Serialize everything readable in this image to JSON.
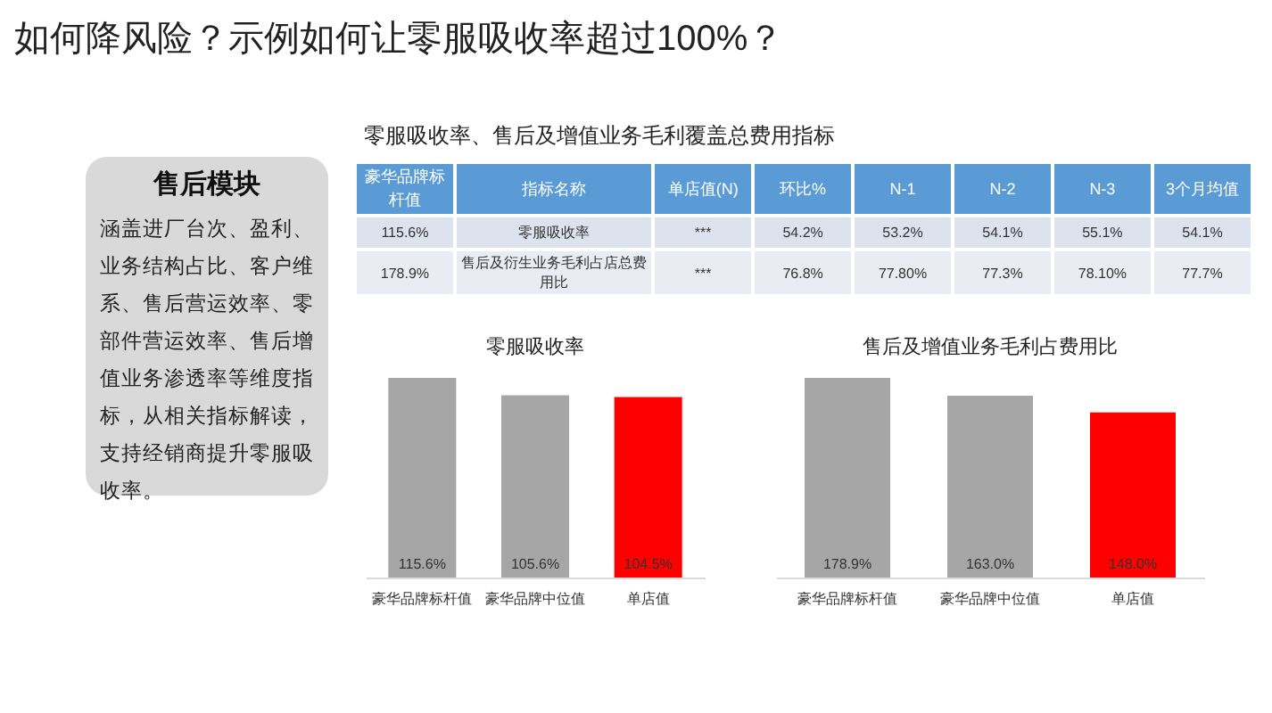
{
  "chart_data": [
    {
      "type": "other",
      "title": "如何降风险？示例如何让零服吸收率超过100%？"
    },
    {
      "type": "other",
      "title": "售后模块",
      "annotations": [
        "涵盖进厂台次、盈利、业务结构占比、客户维系、售后营运效率、零部件营运效率、售后增值业务渗透率等维度指标，从相关指标解读，支持经销商提升零服吸收率。"
      ]
    },
    {
      "type": "other",
      "title": "零服吸收率、售后及增值业务毛利覆盖总费用指标",
      "categories": [
        "豪华品牌标杆值",
        "指标名称",
        "单店值(N)",
        "环比%",
        "N-1",
        "N-2",
        "N-3",
        "3个月均值"
      ],
      "cell_labels": [
        [
          "115.6%",
          "零服吸收率",
          "***",
          "54.2%",
          "53.2%",
          "54.1%",
          "55.1%",
          "54.1%"
        ],
        [
          "178.9%",
          "售后及衍生业务毛利占店总费用比",
          "***",
          "76.8%",
          "77.80%",
          "77.3%",
          "78.10%",
          "77.7%"
        ]
      ]
    },
    {
      "type": "bar",
      "title": "零服吸收率",
      "categories": [
        "豪华品牌标杆值",
        "豪华品牌中位值",
        "单店值"
      ],
      "values": [
        115.6,
        105.6,
        104.5
      ],
      "colors": [
        "#a6a6a6",
        "#a6a6a6",
        "#ff0000"
      ],
      "data_labels": true,
      "value_labels": [
        "115.6%",
        "105.6%",
        "104.5%"
      ],
      "tick_labels": "x",
      "grid": false
    },
    {
      "type": "bar",
      "title": "售后及增值业务毛利占费用比",
      "categories": [
        "豪华品牌标杆值",
        "豪华品牌中位值",
        "单店值"
      ],
      "values": [
        178.9,
        163.0,
        148.0
      ],
      "colors": [
        "#a6a6a6",
        "#a6a6a6",
        "#ff0000"
      ],
      "data_labels": true,
      "value_labels": [
        "178.9%",
        "163.0%",
        "148.0%"
      ],
      "tick_labels": "x",
      "grid": false
    }
  ]
}
